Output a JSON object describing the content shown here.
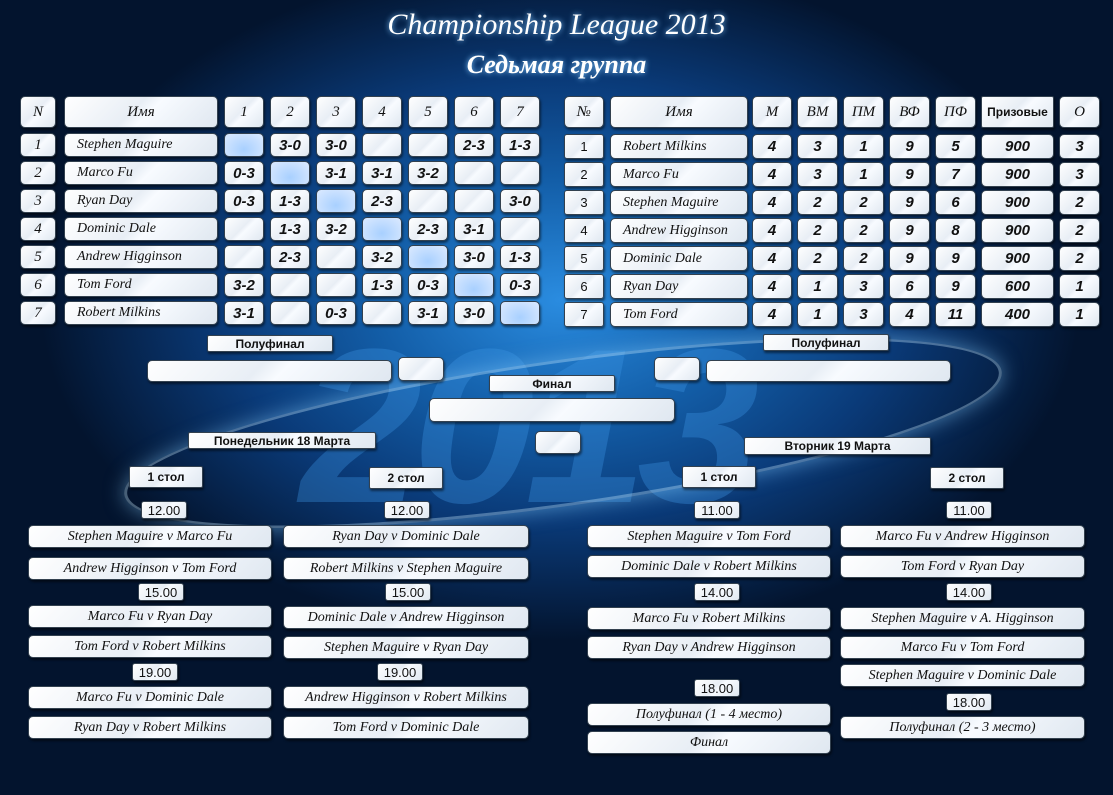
{
  "title": "Championship League 2013",
  "subtitle": "Седьмая группа",
  "colors": {
    "background": "#0a3a78",
    "cell": "#f2f6fb",
    "diagonal": "#b8d8ff"
  },
  "grid": {
    "headers": [
      "N",
      "Имя",
      "1",
      "2",
      "3",
      "4",
      "5",
      "6",
      "7"
    ],
    "rows": [
      {
        "n": "1",
        "name": "Stephen Maguire",
        "results": [
          "",
          "3-0",
          "3-0",
          "",
          "",
          "2-3",
          "1-3"
        ]
      },
      {
        "n": "2",
        "name": "Marco Fu",
        "results": [
          "0-3",
          "",
          "3-1",
          "3-1",
          "3-2",
          "",
          ""
        ]
      },
      {
        "n": "3",
        "name": "Ryan Day",
        "results": [
          "0-3",
          "1-3",
          "",
          "2-3",
          "",
          "",
          "3-0"
        ]
      },
      {
        "n": "4",
        "name": "Dominic Dale",
        "results": [
          "",
          "1-3",
          "3-2",
          "",
          "2-3",
          "3-1",
          ""
        ]
      },
      {
        "n": "5",
        "name": "Andrew Higginson",
        "results": [
          "",
          "2-3",
          "",
          "3-2",
          "",
          "3-0",
          "1-3"
        ]
      },
      {
        "n": "6",
        "name": "Tom Ford",
        "results": [
          "3-2",
          "",
          "",
          "1-3",
          "0-3",
          "",
          "0-3"
        ]
      },
      {
        "n": "7",
        "name": "Robert Milkins",
        "results": [
          "3-1",
          "",
          "0-3",
          "",
          "3-1",
          "3-0",
          ""
        ]
      }
    ]
  },
  "standings": {
    "headers": [
      "№",
      "Имя",
      "М",
      "ВМ",
      "ПМ",
      "ВФ",
      "ПФ",
      "Призовые",
      "О"
    ],
    "rows": [
      [
        "1",
        "Robert Milkins",
        "4",
        "3",
        "1",
        "9",
        "5",
        "900",
        "3"
      ],
      [
        "2",
        "Marco Fu",
        "4",
        "3",
        "1",
        "9",
        "7",
        "900",
        "3"
      ],
      [
        "3",
        "Stephen Maguire",
        "4",
        "2",
        "2",
        "9",
        "6",
        "900",
        "2"
      ],
      [
        "4",
        "Andrew Higginson",
        "4",
        "2",
        "2",
        "9",
        "8",
        "900",
        "2"
      ],
      [
        "5",
        "Dominic Dale",
        "4",
        "2",
        "2",
        "9",
        "9",
        "900",
        "2"
      ],
      [
        "6",
        "Ryan Day",
        "4",
        "1",
        "3",
        "6",
        "9",
        "600",
        "1"
      ],
      [
        "7",
        "Tom Ford",
        "4",
        "1",
        "3",
        "4",
        "11",
        "400",
        "1"
      ]
    ]
  },
  "bracket": {
    "semi_left": "Полуфинал",
    "semi_right": "Полуфинал",
    "final": "Финал"
  },
  "days": {
    "monday": "Понедельник 18 Марта",
    "tuesday": "Вторник 19 Марта"
  },
  "tables": {
    "t1": "1 стол",
    "t2": "2 стол"
  },
  "schedule": [
    {
      "items": [
        {
          "time": "12.00"
        },
        {
          "m": "Stephen Maguire  v  Marco Fu"
        },
        {
          "m": "Andrew Higginson  v  Tom Ford"
        },
        {
          "time": "15.00"
        },
        {
          "m": "Marco Fu  v  Ryan Day"
        },
        {
          "m": "Tom Ford  v  Robert Milkins"
        },
        {
          "time": "19.00"
        },
        {
          "m": "Marco Fu  v  Dominic Dale"
        },
        {
          "m": "Ryan Day  v  Robert Milkins"
        }
      ]
    },
    {
      "items": [
        {
          "time": "12.00"
        },
        {
          "m": "Ryan Day  v  Dominic Dale"
        },
        {
          "m": "Robert Milkins  v  Stephen Maguire"
        },
        {
          "time": "15.00"
        },
        {
          "m": "Dominic Dale  v  Andrew Higginson"
        },
        {
          "m": "Stephen Maguire  v Ryan Day"
        },
        {
          "time": "19.00"
        },
        {
          "m": "Andrew Higginson v Robert Milkins"
        },
        {
          "m": "Tom Ford  v  Dominic Dale"
        }
      ]
    },
    {
      "items": [
        {
          "time": "11.00"
        },
        {
          "m": "Stephen Maguire  v  Tom Ford"
        },
        {
          "m": "Dominic Dale  v  Robert Milkins"
        },
        {
          "time": "14.00"
        },
        {
          "m": "Marco Fu  v  Robert Milkins"
        },
        {
          "m": "Ryan Day  v  Andrew Higginson"
        },
        {
          "time": "18.00"
        },
        {
          "m": "Полуфинал (1 - 4 место)"
        },
        {
          "m": "Финал"
        }
      ]
    },
    {
      "items": [
        {
          "time": "11.00"
        },
        {
          "m": "Marco Fu  v  Andrew Higginson"
        },
        {
          "m": "Tom Ford  v  Ryan Day"
        },
        {
          "time": "14.00"
        },
        {
          "m": "Stephen Maguire  v A. Higginson"
        },
        {
          "m": "Marco Fu  v  Tom Ford"
        },
        {
          "m": "Stephen Maguire  v  Dominic Dale"
        },
        {
          "time": "18.00"
        },
        {
          "m": "Полуфинал (2 - 3 место)"
        }
      ]
    }
  ]
}
